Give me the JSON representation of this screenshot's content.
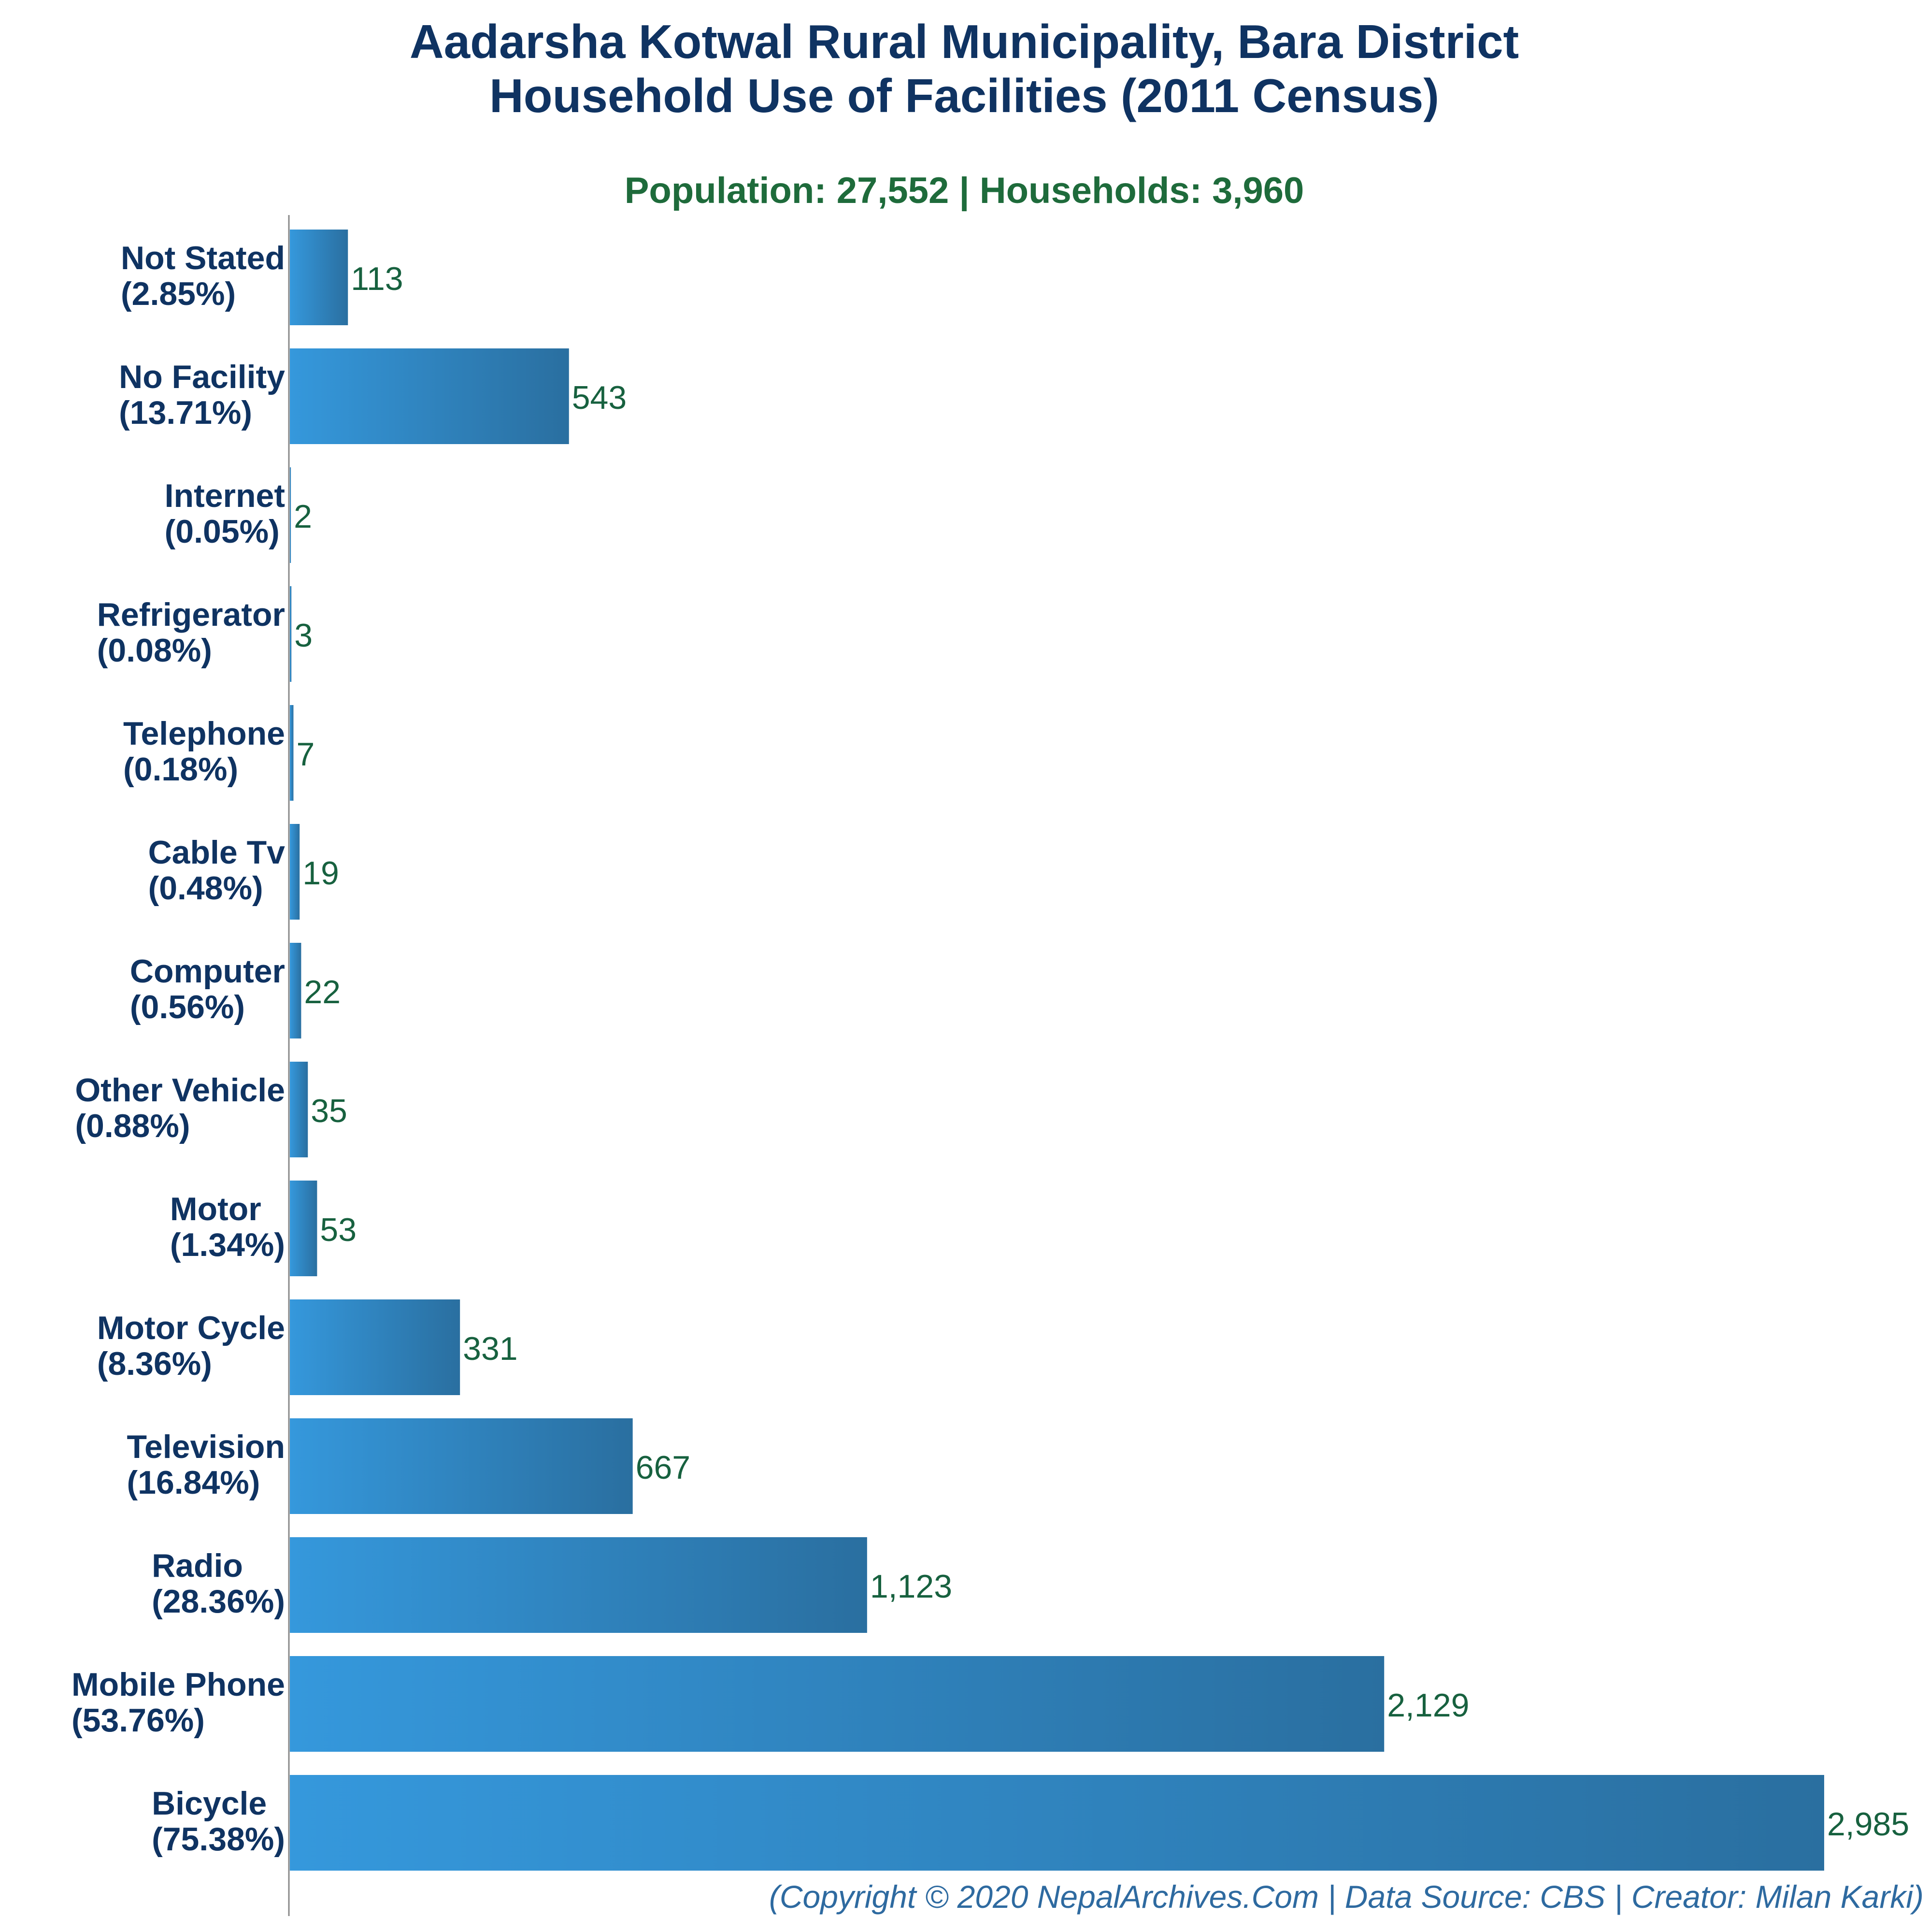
{
  "chart_data": {
    "type": "bar",
    "orientation": "horizontal",
    "title": "Aadarsha Kotwal Rural Municipality, Bara District",
    "subtitle": "Household Use of Facilities (2011 Census)",
    "summary": "Population: 27,552 | Households: 3,960",
    "footer": "(Copyright © 2020 NepalArchives.Com | Data Source: CBS | Creator: Milan Karki)",
    "xlim": [
      0,
      2985
    ],
    "grid": false,
    "categories": [
      "Not Stated",
      "No Facility",
      "Internet",
      "Refrigerator",
      "Telephone",
      "Cable Tv",
      "Computer",
      "Other Vehicle",
      "Motor",
      "Motor Cycle",
      "Television",
      "Radio",
      "Mobile Phone",
      "Bicycle"
    ],
    "percent_labels": [
      "(2.85%)",
      "(13.71%)",
      "(0.05%)",
      "(0.08%)",
      "(0.18%)",
      "(0.48%)",
      "(0.56%)",
      "(0.88%)",
      "(1.34%)",
      "(8.36%)",
      "(16.84%)",
      "(28.36%)",
      "(53.76%)",
      "(75.38%)"
    ],
    "values": [
      113,
      543,
      2,
      3,
      7,
      19,
      22,
      35,
      53,
      331,
      667,
      1123,
      2129,
      2985
    ],
    "value_labels": [
      "113",
      "543",
      "2",
      "3",
      "7",
      "19",
      "22",
      "35",
      "53",
      "331",
      "667",
      "1,123",
      "2,129",
      "2,985"
    ],
    "colors": {
      "bar_light": "#3598dc",
      "bar_dark": "#2a6fa0",
      "title": "#0f3362",
      "category_label": "#0f3362",
      "value_label": "#17613f",
      "summary": "#1e6b3b",
      "footer": "#2e6aa0",
      "axis": "#888888"
    }
  }
}
